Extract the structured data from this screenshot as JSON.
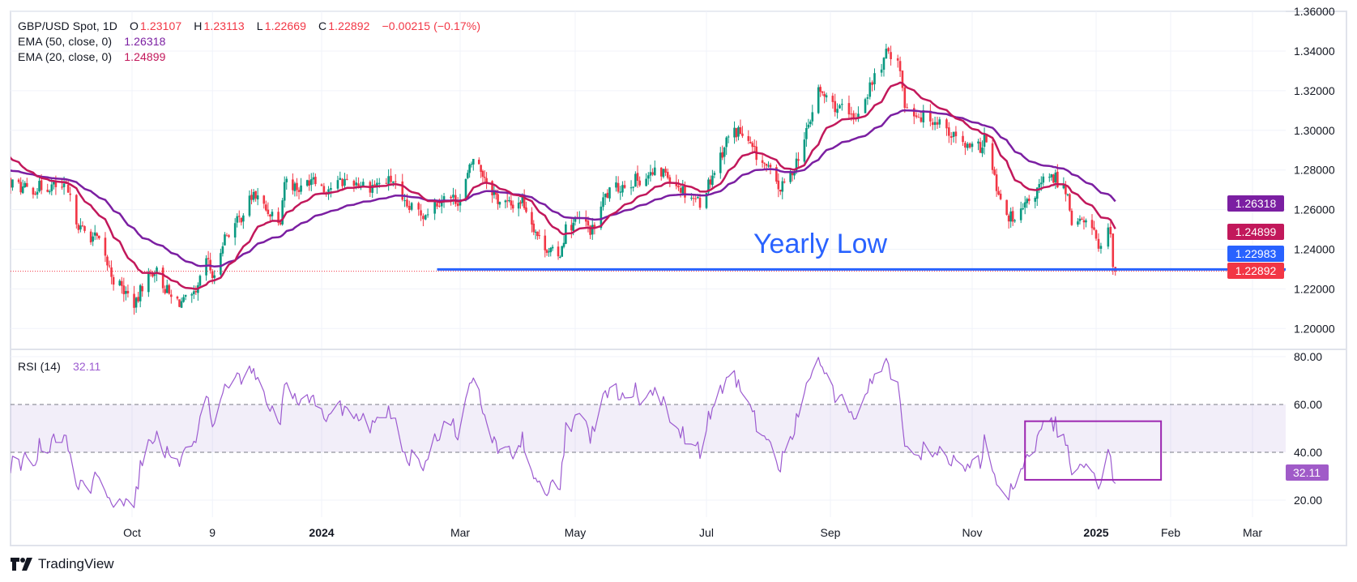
{
  "header": {
    "symbol": "GBP/USD Spot, 1D",
    "o_label": "O",
    "o": "1.23107",
    "h_label": "H",
    "h": "1.23113",
    "l_label": "L",
    "l": "1.22669",
    "c_label": "C",
    "c": "1.22892",
    "change": "−0.00215 (−0.17%)"
  },
  "ema50": {
    "label": "EMA (50, close, 0)",
    "value": "1.26318"
  },
  "ema20": {
    "label": "EMA (20, close, 0)",
    "value": "1.24899"
  },
  "rsi": {
    "label": "RSI (14)",
    "value": "32.11"
  },
  "brand": "TradingView",
  "colors": {
    "up": "#089981",
    "down": "#F23645",
    "ema50": "#7B1FA2",
    "ema20": "#C2185B",
    "yearly_low": "#2962FF",
    "rsi": "#9C5BD0",
    "rsi_box": "#9C27B0",
    "grid": "#F0F3FA"
  },
  "chart_data": {
    "type": "candlestick",
    "title": "GBP/USD Spot, 1D",
    "visible_from": "2023-08-01",
    "price_axis": {
      "ticks": [
        "1.36000",
        "1.34000",
        "1.32000",
        "1.30000",
        "1.28000",
        "1.26000",
        "1.24000",
        "1.22000",
        "1.20000"
      ],
      "ylim": [
        1.19,
        1.36
      ]
    },
    "rsi_axis": {
      "ticks": [
        "80.00",
        "60.00",
        "40.00",
        "20.00"
      ],
      "band": [
        40,
        60
      ]
    },
    "time_axis": [
      {
        "label": "Oct",
        "date": "2023-10-01",
        "bold": false
      },
      {
        "label": "9",
        "date": "2023-11-09",
        "bold": false
      },
      {
        "label": "2024",
        "date": "2024-01-01",
        "bold": true
      },
      {
        "label": "Mar",
        "date": "2024-03-01",
        "bold": false
      },
      {
        "label": "May",
        "date": "2024-05-01",
        "bold": false
      },
      {
        "label": "Jul",
        "date": "2024-07-01",
        "bold": false
      },
      {
        "label": "Sep",
        "date": "2024-09-01",
        "bold": false
      },
      {
        "label": "Nov",
        "date": "2024-11-01",
        "bold": false
      },
      {
        "label": "2025",
        "date": "2025-01-01",
        "bold": true
      },
      {
        "label": "Feb",
        "date": "2025-02-01",
        "bold": false
      },
      {
        "label": "Mar",
        "date": "2025-03-01",
        "bold": false
      }
    ],
    "badges": [
      {
        "name": "ema50",
        "value": "1.26318",
        "color": "#7B1FA2"
      },
      {
        "name": "ema20",
        "value": "1.24899",
        "color": "#C2185B"
      },
      {
        "name": "yearly-low",
        "value": "1.22983",
        "color": "#2962FF"
      },
      {
        "name": "last-price",
        "value": "1.22892",
        "color": "#F23645"
      }
    ],
    "rsi_badge": {
      "value": "32.11",
      "color": "#A05BC8"
    },
    "annotation": {
      "text": "Yearly Low",
      "price": 1.22983,
      "from": "2024-02-20"
    },
    "rsi_highlight_box": {
      "from": "2024-11-27",
      "to": "2025-01-28",
      "rsi_range": [
        28.5,
        53
      ]
    },
    "last_bar": {
      "date": "2025-01-09",
      "open": 1.23107,
      "high": 1.23113,
      "low": 1.22669,
      "close": 1.22892
    },
    "close_anchors": [
      [
        "2023-06-01",
        1.245
      ],
      [
        "2023-06-20",
        1.275
      ],
      [
        "2023-07-14",
        1.31
      ],
      [
        "2023-07-27",
        1.285
      ],
      [
        "2023-08-01",
        1.275
      ],
      [
        "2023-08-10",
        1.27
      ],
      [
        "2023-08-22",
        1.272
      ],
      [
        "2023-08-30",
        1.27
      ],
      [
        "2023-09-06",
        1.25
      ],
      [
        "2023-09-14",
        1.245
      ],
      [
        "2023-09-22",
        1.225
      ],
      [
        "2023-10-03",
        1.212
      ],
      [
        "2023-10-06",
        1.222
      ],
      [
        "2023-10-12",
        1.23
      ],
      [
        "2023-10-20",
        1.215
      ],
      [
        "2023-10-26",
        1.213
      ],
      [
        "2023-11-01",
        1.216
      ],
      [
        "2023-11-06",
        1.235
      ],
      [
        "2023-11-10",
        1.224
      ],
      [
        "2023-11-14",
        1.245
      ],
      [
        "2023-11-22",
        1.255
      ],
      [
        "2023-11-29",
        1.268
      ],
      [
        "2023-12-05",
        1.26
      ],
      [
        "2023-12-12",
        1.256
      ],
      [
        "2023-12-14",
        1.275
      ],
      [
        "2023-12-22",
        1.27
      ],
      [
        "2023-12-28",
        1.278
      ],
      [
        "2024-01-02",
        1.27
      ],
      [
        "2024-01-12",
        1.275
      ],
      [
        "2024-01-22",
        1.272
      ],
      [
        "2024-02-01",
        1.275
      ],
      [
        "2024-02-05",
        1.262
      ],
      [
        "2024-02-14",
        1.258
      ],
      [
        "2024-02-22",
        1.266
      ],
      [
        "2024-03-01",
        1.265
      ],
      [
        "2024-03-08",
        1.286
      ],
      [
        "2024-03-14",
        1.277
      ],
      [
        "2024-03-21",
        1.265
      ],
      [
        "2024-03-28",
        1.262
      ],
      [
        "2024-04-03",
        1.265
      ],
      [
        "2024-04-12",
        1.245
      ],
      [
        "2024-04-22",
        1.235
      ],
      [
        "2024-04-26",
        1.25
      ],
      [
        "2024-05-03",
        1.255
      ],
      [
        "2024-05-09",
        1.249
      ],
      [
        "2024-05-15",
        1.267
      ],
      [
        "2024-05-24",
        1.273
      ],
      [
        "2024-06-04",
        1.277
      ],
      [
        "2024-06-12",
        1.279
      ],
      [
        "2024-06-20",
        1.27
      ],
      [
        "2024-06-28",
        1.264
      ],
      [
        "2024-07-05",
        1.28
      ],
      [
        "2024-07-12",
        1.297
      ],
      [
        "2024-07-17",
        1.3
      ],
      [
        "2024-07-24",
        1.29
      ],
      [
        "2024-08-01",
        1.28
      ],
      [
        "2024-08-07",
        1.27
      ],
      [
        "2024-08-12",
        1.277
      ],
      [
        "2024-08-19",
        1.295
      ],
      [
        "2024-08-26",
        1.32
      ],
      [
        "2024-09-02",
        1.313
      ],
      [
        "2024-09-06",
        1.31
      ],
      [
        "2024-09-11",
        1.305
      ],
      [
        "2024-09-18",
        1.322
      ],
      [
        "2024-09-26",
        1.34
      ],
      [
        "2024-09-30",
        1.337
      ],
      [
        "2024-10-03",
        1.313
      ],
      [
        "2024-10-10",
        1.307
      ],
      [
        "2024-10-18",
        1.305
      ],
      [
        "2024-10-24",
        1.297
      ],
      [
        "2024-10-31",
        1.29
      ],
      [
        "2024-11-06",
        1.292
      ],
      [
        "2024-11-07",
        1.297
      ],
      [
        "2024-11-12",
        1.275
      ],
      [
        "2024-11-15",
        1.262
      ],
      [
        "2024-11-22",
        1.253
      ],
      [
        "2024-11-26",
        1.26
      ],
      [
        "2024-12-02",
        1.268
      ],
      [
        "2024-12-06",
        1.274
      ],
      [
        "2024-12-12",
        1.276
      ],
      [
        "2024-12-18",
        1.268
      ],
      [
        "2024-12-20",
        1.255
      ],
      [
        "2024-12-26",
        1.253
      ],
      [
        "2024-12-31",
        1.252
      ],
      [
        "2025-01-02",
        1.238
      ],
      [
        "2025-01-03",
        1.2415
      ],
      [
        "2025-01-06",
        1.2515
      ],
      [
        "2025-01-07",
        1.248
      ],
      [
        "2025-01-08",
        1.23107
      ]
    ]
  }
}
